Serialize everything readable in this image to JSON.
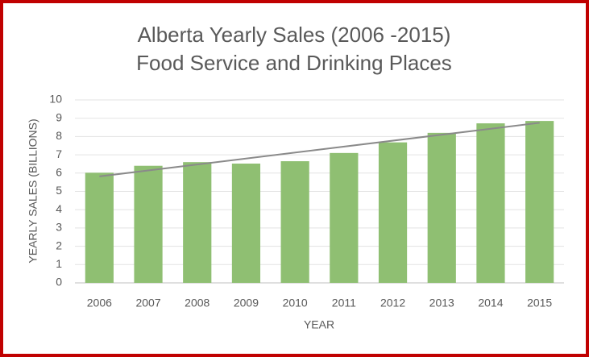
{
  "chart_data": {
    "type": "bar",
    "title": "Alberta Yearly Sales (2006 -2015)",
    "subtitle": "Food Service and Drinking Places",
    "x_label": "YEAR",
    "y_label": "YEARLY SALES (BILLIONS)",
    "categories": [
      "2006",
      "2007",
      "2008",
      "2009",
      "2010",
      "2011",
      "2012",
      "2013",
      "2014",
      "2015"
    ],
    "values": [
      6.02,
      6.4,
      6.6,
      6.52,
      6.65,
      7.1,
      7.68,
      8.2,
      8.72,
      8.85
    ],
    "color": "#8fbf72",
    "trendline": {
      "values": [
        5.82,
        8.75
      ],
      "color": "#8a8a8a"
    },
    "ylim": [
      0,
      10
    ],
    "yticks": [
      0,
      1,
      2,
      3,
      4,
      5,
      6,
      7,
      8,
      9,
      10
    ],
    "grid": true
  }
}
